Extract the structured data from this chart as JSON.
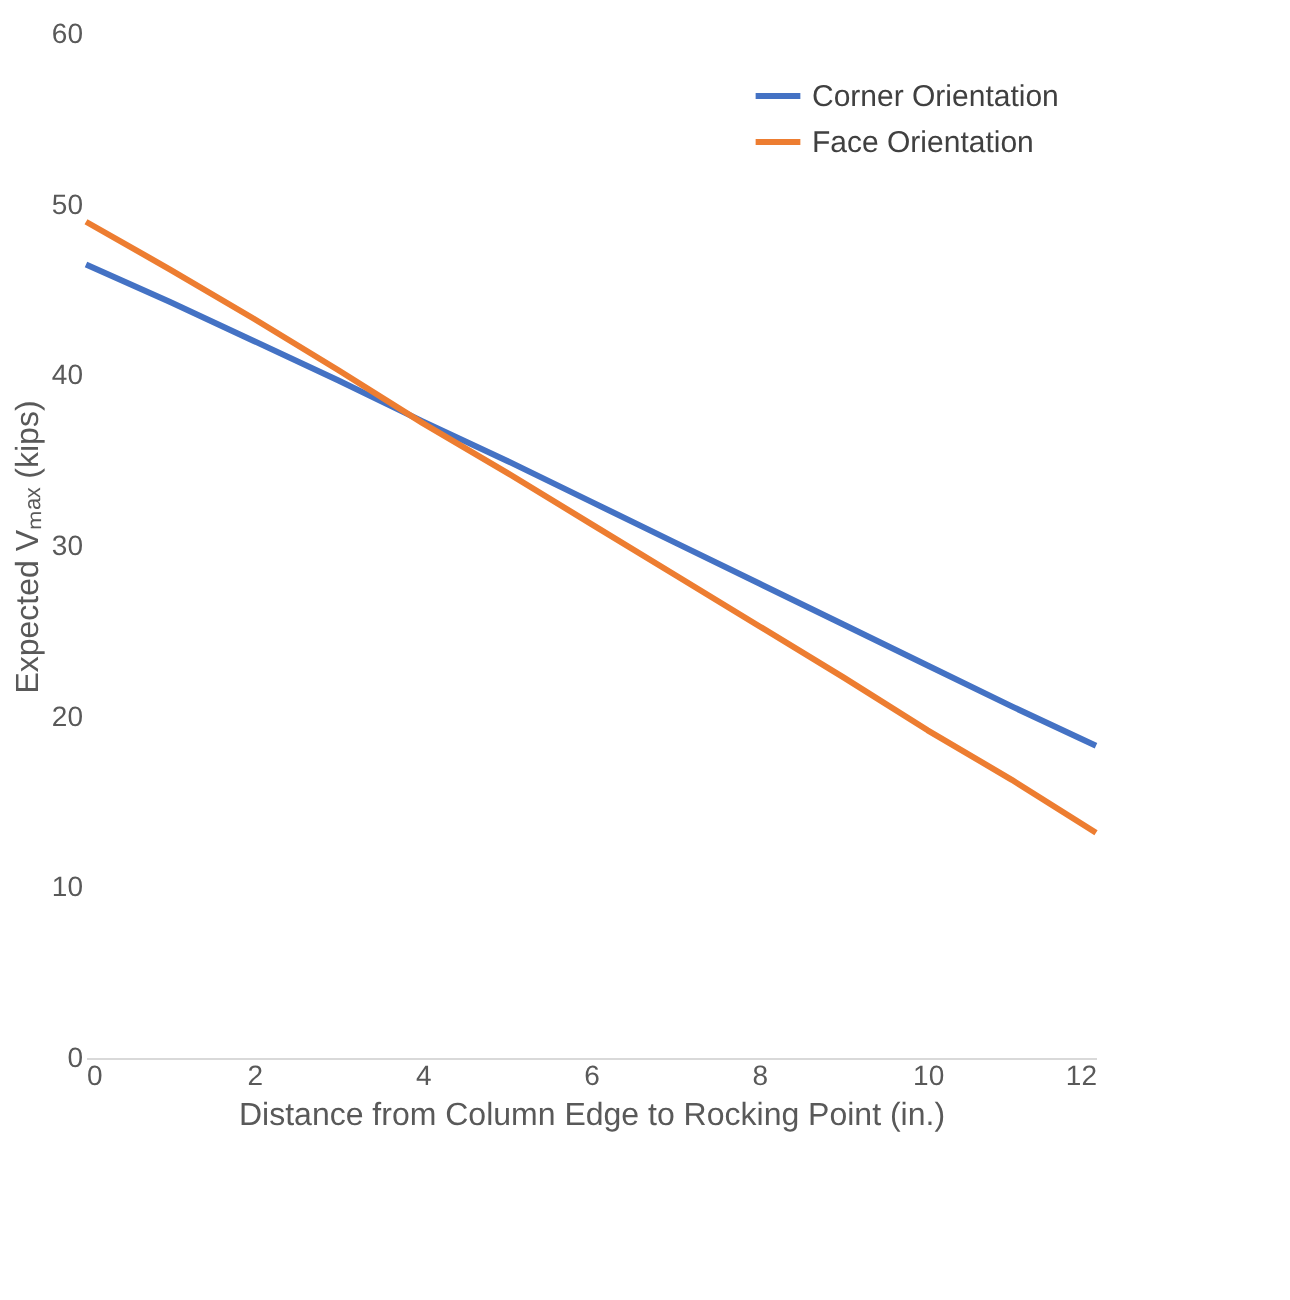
{
  "chart_data": {
    "type": "line",
    "xlabel": "Distance from Column Edge to Rocking Point (in.)",
    "ylabel": "Expected Vₘₐₓ (kips)",
    "x": [
      0,
      1,
      2,
      3,
      4,
      5,
      6,
      7,
      8,
      9,
      10,
      11,
      12
    ],
    "series": [
      {
        "name": "Corner Orientation",
        "color": "#4472c4",
        "values": [
          46.5,
          44.3,
          42.0,
          39.7,
          37.3,
          35.0,
          32.6,
          30.2,
          27.8,
          25.4,
          23.0,
          20.6,
          18.3
        ]
      },
      {
        "name": "Face Orientation",
        "color": "#ed7d31",
        "values": [
          49.0,
          46.2,
          43.3,
          40.3,
          37.2,
          34.3,
          31.3,
          28.3,
          25.3,
          22.3,
          19.2,
          16.3,
          13.2
        ]
      }
    ],
    "xlim": [
      0,
      12
    ],
    "xticks": [
      0,
      2,
      4,
      6,
      8,
      10,
      12
    ],
    "ylim": [
      0,
      60
    ],
    "yticks": [
      0,
      10,
      20,
      30,
      40,
      50,
      60
    ],
    "grid": false,
    "legend": "top right",
    "marker": "none",
    "line_style": "solid"
  }
}
